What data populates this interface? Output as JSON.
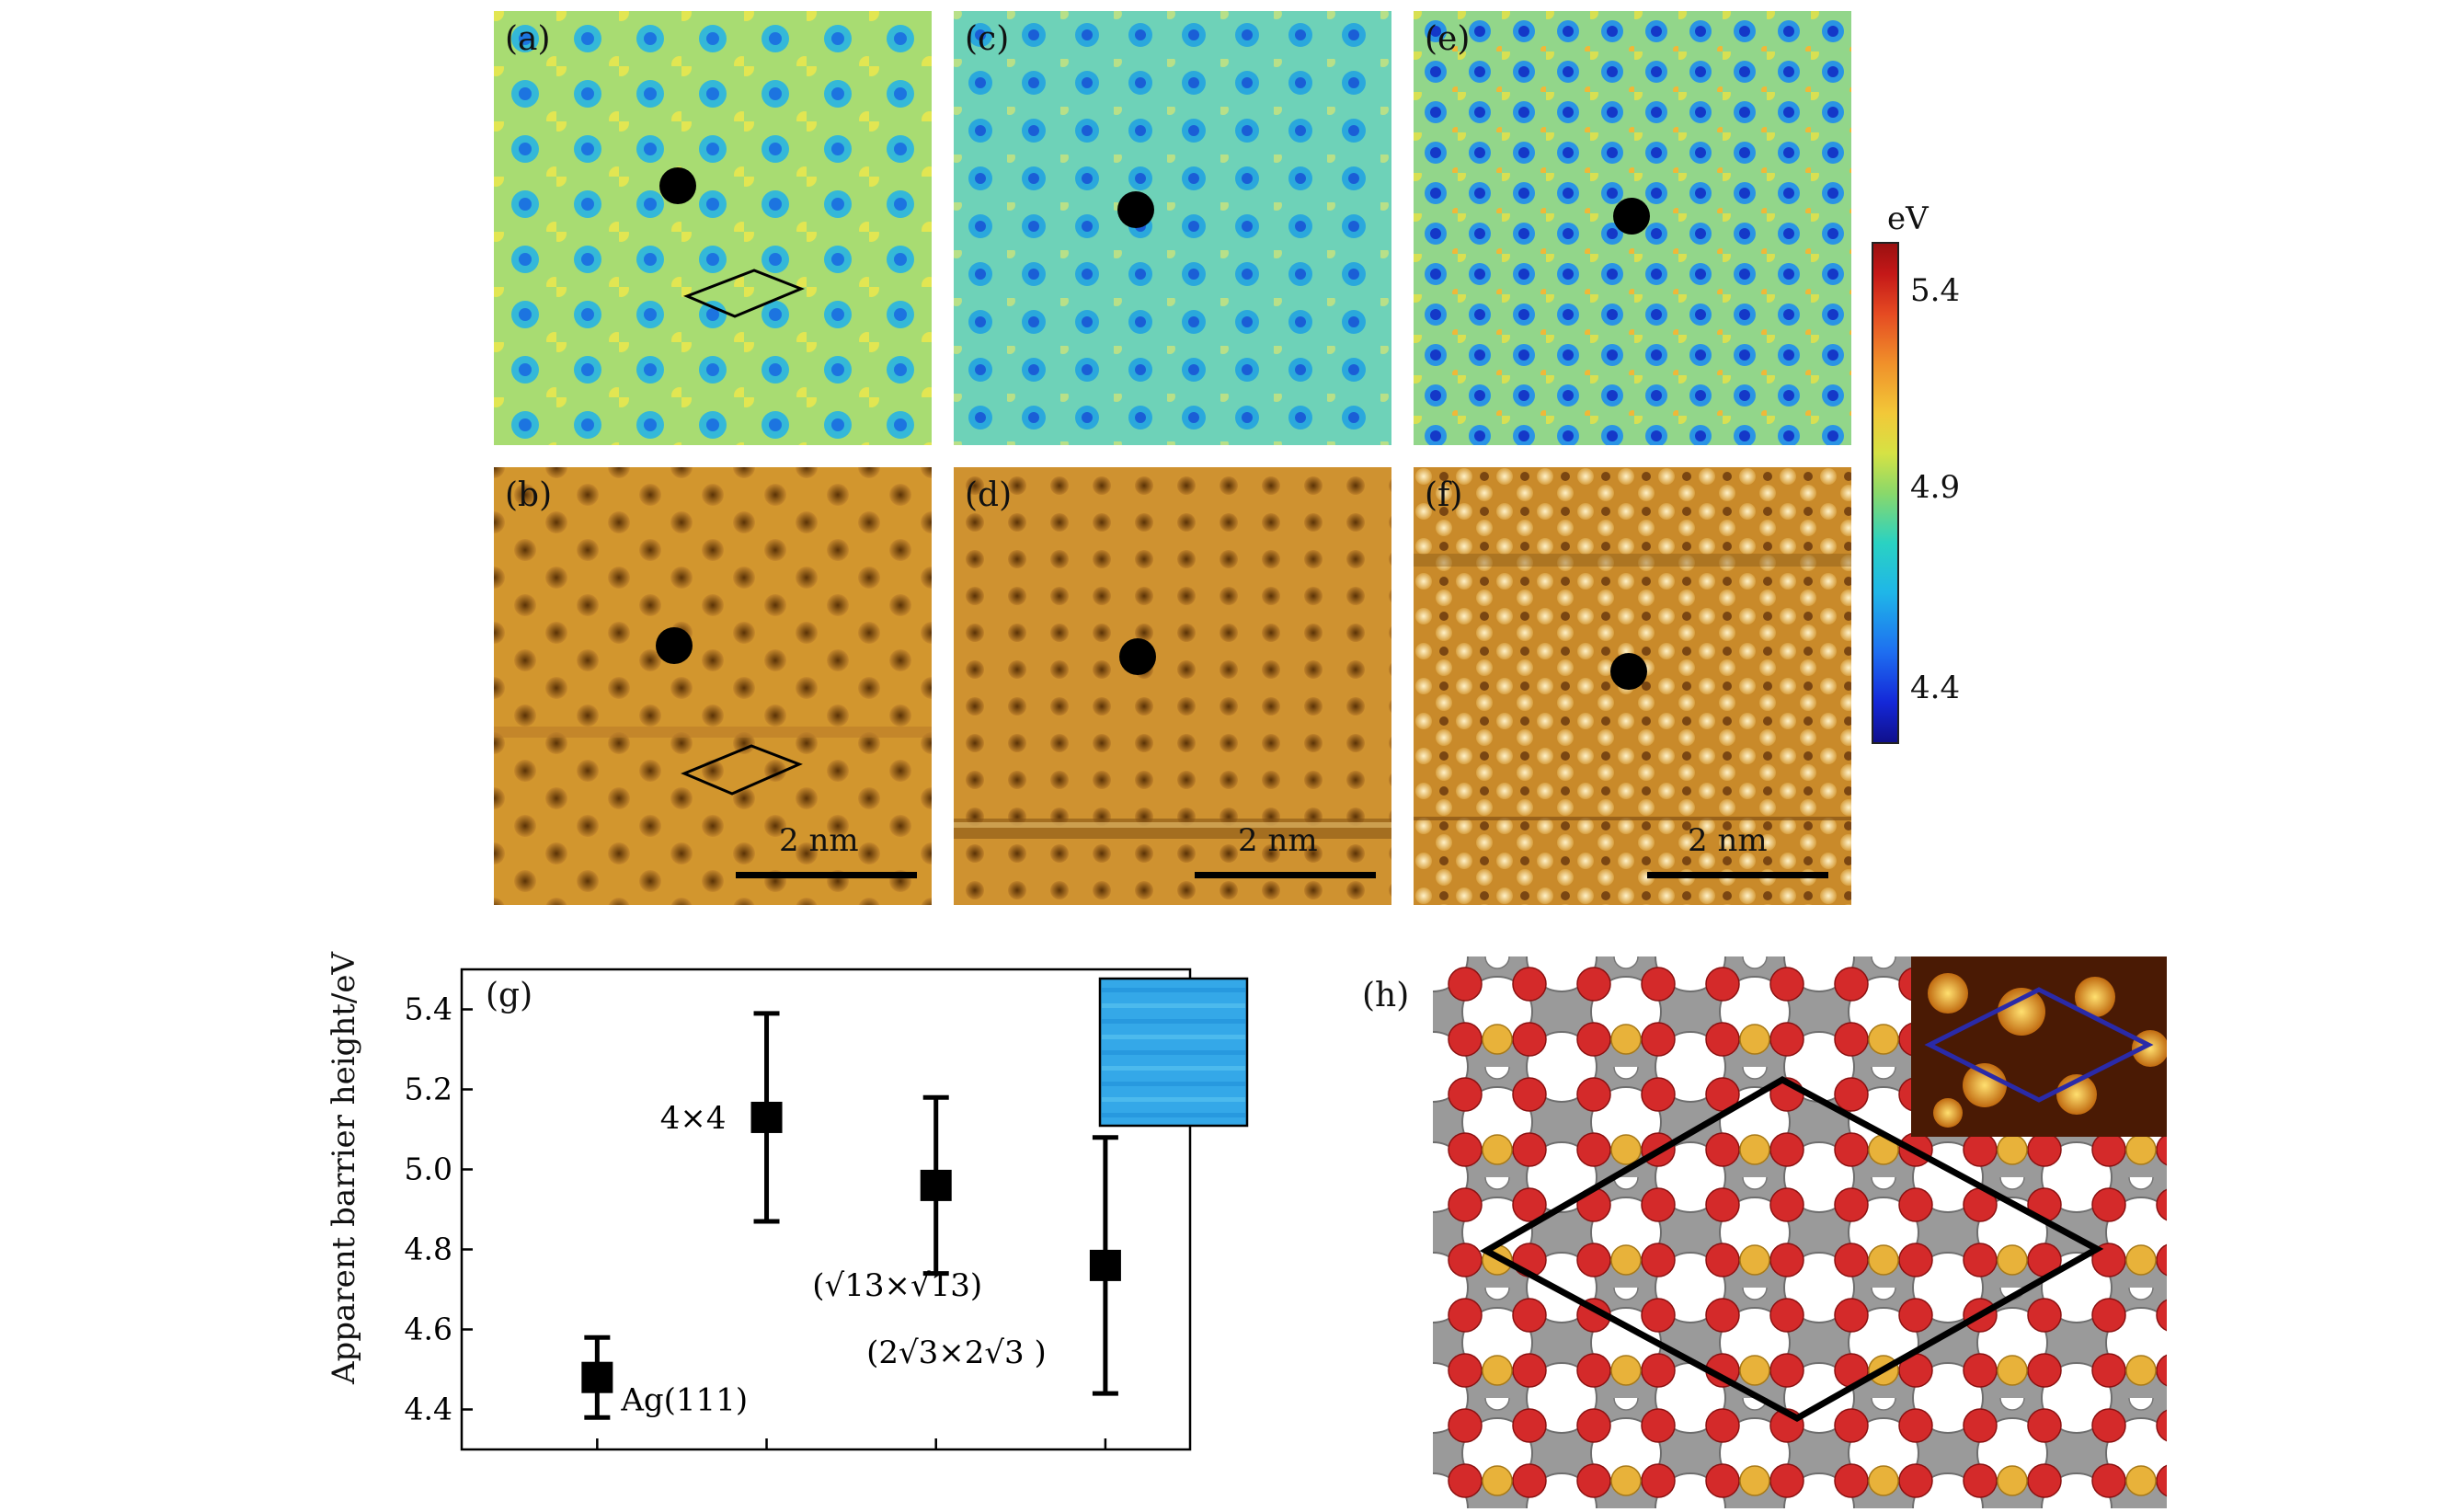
{
  "panels": {
    "a": {
      "label": "(a)"
    },
    "b": {
      "label": "(b)",
      "scale": "2 nm"
    },
    "c": {
      "label": "(c)"
    },
    "d": {
      "label": "(d)",
      "scale": "2 nm"
    },
    "e": {
      "label": "(e)"
    },
    "f": {
      "label": "(f)",
      "scale": "2 nm"
    },
    "g": {
      "label": "(g)"
    },
    "h": {
      "label": "(h)"
    }
  },
  "colorbar": {
    "unit": "eV",
    "ticks": [
      "5.4",
      "4.9",
      "4.4"
    ],
    "colors": [
      "#10108c",
      "#1e6ef0",
      "#2ad2c2",
      "#d6e244",
      "#f0902a",
      "#c41818"
    ]
  },
  "chart_data": {
    "type": "scatter",
    "title": "",
    "xlabel": "",
    "ylabel": "Apparent barrier height/eV",
    "ylim": [
      4.3,
      5.5
    ],
    "yticks": [
      "4.4",
      "4.6",
      "4.8",
      "5.0",
      "5.2",
      "5.4"
    ],
    "points": [
      {
        "label": "Ag(111)",
        "x": 1,
        "y": 4.48,
        "low": 4.38,
        "high": 4.58
      },
      {
        "label": "4×4",
        "x": 2,
        "y": 5.13,
        "low": 4.87,
        "high": 5.39
      },
      {
        "label": "(√13×√13)",
        "x": 3,
        "y": 4.96,
        "low": 4.74,
        "high": 5.18
      },
      {
        "label": "(2√3×2√3 )",
        "x": 4,
        "y": 4.76,
        "low": 4.44,
        "high": 5.08
      }
    ]
  }
}
